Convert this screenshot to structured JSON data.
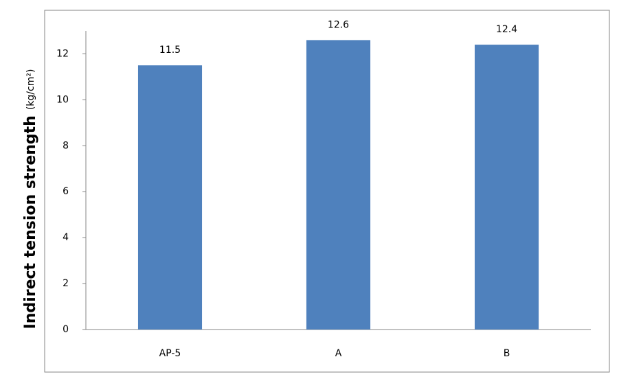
{
  "chart_data": {
    "type": "bar",
    "y_label": "Indirect tension strength",
    "y_unit": "(kg/cm²)",
    "categories": [
      "AP-5",
      "A",
      "B"
    ],
    "values": [
      11.5,
      12.6,
      12.4
    ],
    "color": "#4f81bd",
    "ylim": [
      0,
      13
    ],
    "yticks": [
      0,
      2,
      4,
      6,
      8,
      10,
      12
    ],
    "grid": false
  }
}
